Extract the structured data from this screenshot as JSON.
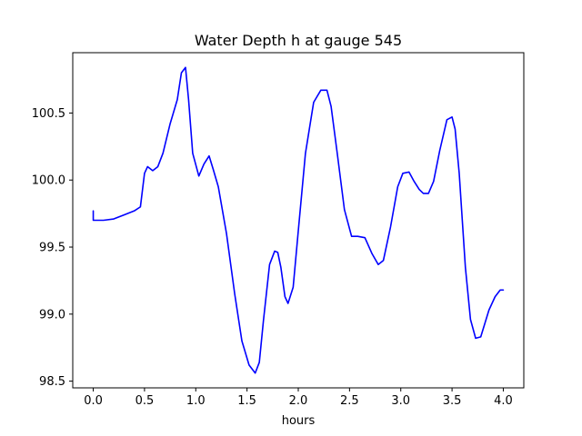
{
  "chart_data": {
    "type": "line",
    "title": "Water Depth h at gauge 545",
    "xlabel": "hours",
    "ylabel": "",
    "xlim": [
      -0.2,
      4.2
    ],
    "ylim": [
      98.45,
      100.95
    ],
    "xticks": [
      0.0,
      0.5,
      1.0,
      1.5,
      2.0,
      2.5,
      3.0,
      3.5,
      4.0
    ],
    "xtick_labels": [
      "0.0",
      "0.5",
      "1.0",
      "1.5",
      "2.0",
      "2.5",
      "3.0",
      "3.5",
      "4.0"
    ],
    "yticks": [
      98.5,
      99.0,
      99.5,
      100.0,
      100.5
    ],
    "ytick_labels": [
      "98.5",
      "99.0",
      "99.5",
      "100.0",
      "100.5"
    ],
    "grid": false,
    "series": [
      {
        "color": "#0000ff",
        "x": [
          0.0,
          0.0,
          0.1,
          0.2,
          0.3,
          0.4,
          0.46,
          0.5,
          0.53,
          0.58,
          0.63,
          0.68,
          0.75,
          0.82,
          0.86,
          0.9,
          0.93,
          0.97,
          1.03,
          1.08,
          1.13,
          1.17,
          1.22,
          1.3,
          1.38,
          1.45,
          1.52,
          1.58,
          1.62,
          1.66,
          1.72,
          1.77,
          1.8,
          1.83,
          1.87,
          1.9,
          1.95,
          2.0,
          2.07,
          2.15,
          2.22,
          2.28,
          2.32,
          2.38,
          2.45,
          2.52,
          2.58,
          2.65,
          2.72,
          2.78,
          2.83,
          2.9,
          2.97,
          3.02,
          3.08,
          3.13,
          3.18,
          3.22,
          3.27,
          3.32,
          3.38,
          3.45,
          3.5,
          3.53,
          3.57,
          3.63,
          3.68,
          3.73,
          3.78,
          3.82,
          3.86,
          3.92,
          3.97,
          4.0
        ],
        "y": [
          99.77,
          99.7,
          99.7,
          99.71,
          99.74,
          99.77,
          99.8,
          100.05,
          100.1,
          100.07,
          100.1,
          100.2,
          100.42,
          100.6,
          100.8,
          100.84,
          100.6,
          100.2,
          100.03,
          100.12,
          100.18,
          100.08,
          99.95,
          99.6,
          99.15,
          98.8,
          98.62,
          98.56,
          98.64,
          98.95,
          99.37,
          99.47,
          99.46,
          99.35,
          99.13,
          99.08,
          99.2,
          99.62,
          100.2,
          100.58,
          100.67,
          100.67,
          100.55,
          100.2,
          99.78,
          99.58,
          99.58,
          99.57,
          99.45,
          99.37,
          99.4,
          99.65,
          99.95,
          100.05,
          100.06,
          99.99,
          99.93,
          99.9,
          99.9,
          99.99,
          100.22,
          100.45,
          100.47,
          100.38,
          100.05,
          99.35,
          98.96,
          98.82,
          98.83,
          98.93,
          99.03,
          99.13,
          99.18,
          99.18
        ]
      }
    ]
  }
}
